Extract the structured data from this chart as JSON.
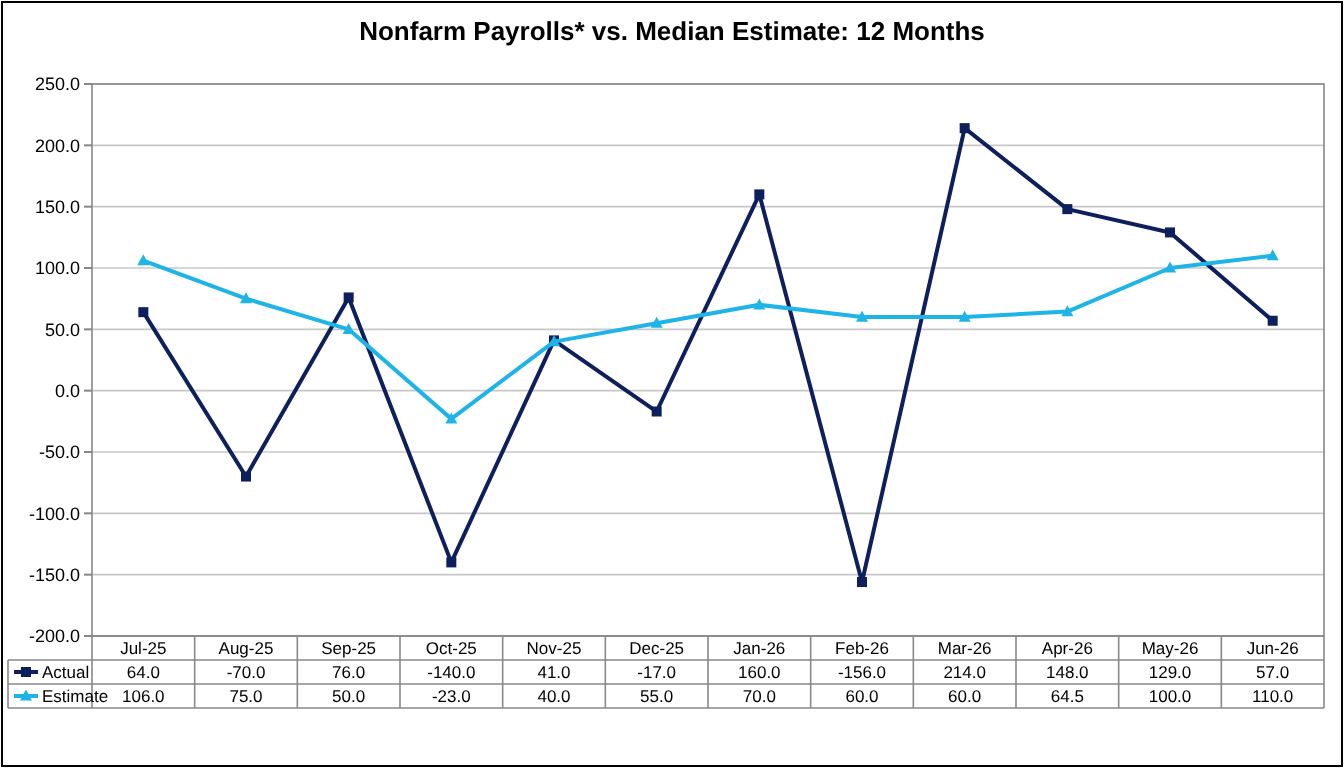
{
  "chart_data": {
    "type": "line",
    "title": "Nonfarm Payrolls* vs. Median Estimate: 12 Months",
    "categories": [
      "Jul-25",
      "Aug-25",
      "Sep-25",
      "Oct-25",
      "Nov-25",
      "Dec-25",
      "Jan-26",
      "Feb-26",
      "Mar-26",
      "Apr-26",
      "May-26",
      "Jun-26"
    ],
    "series": [
      {
        "name": "Actual",
        "color": "#0d1f5c",
        "marker": "square",
        "values": [
          64.0,
          -70.0,
          76.0,
          -140.0,
          41.0,
          -17.0,
          160.0,
          -156.0,
          214.0,
          148.0,
          129.0,
          57.0
        ],
        "value_labels": [
          "64.0",
          "-70.0",
          "76.0",
          "-140.0",
          "41.0",
          "-17.0",
          "160.0",
          "-156.0",
          "214.0",
          "148.0",
          "129.0",
          "57.0"
        ]
      },
      {
        "name": "Estimate",
        "color": "#1fb4e8",
        "marker": "triangle",
        "values": [
          106.0,
          75.0,
          50.0,
          -23.0,
          40.0,
          55.0,
          70.0,
          60.0,
          60.0,
          64.5,
          100.0,
          110.0
        ],
        "value_labels": [
          "106.0",
          "75.0",
          "50.0",
          "-23.0",
          "40.0",
          "55.0",
          "70.0",
          "60.0",
          "60.0",
          "64.5",
          "100.0",
          "110.0"
        ]
      }
    ],
    "ylim": [
      -200,
      250
    ],
    "yticks": [
      {
        "value": -200,
        "label": "-200.0"
      },
      {
        "value": -150,
        "label": "-150.0"
      },
      {
        "value": -100,
        "label": "-100.0"
      },
      {
        "value": -50,
        "label": "-50.0"
      },
      {
        "value": 0,
        "label": "0.0"
      },
      {
        "value": 50,
        "label": "50.0"
      },
      {
        "value": 100,
        "label": "100.0"
      },
      {
        "value": 150,
        "label": "150.0"
      },
      {
        "value": 200,
        "label": "200.0"
      },
      {
        "value": 250,
        "label": "250.0"
      }
    ],
    "grid": "y",
    "legend": "bottom",
    "line_style": "solid"
  }
}
